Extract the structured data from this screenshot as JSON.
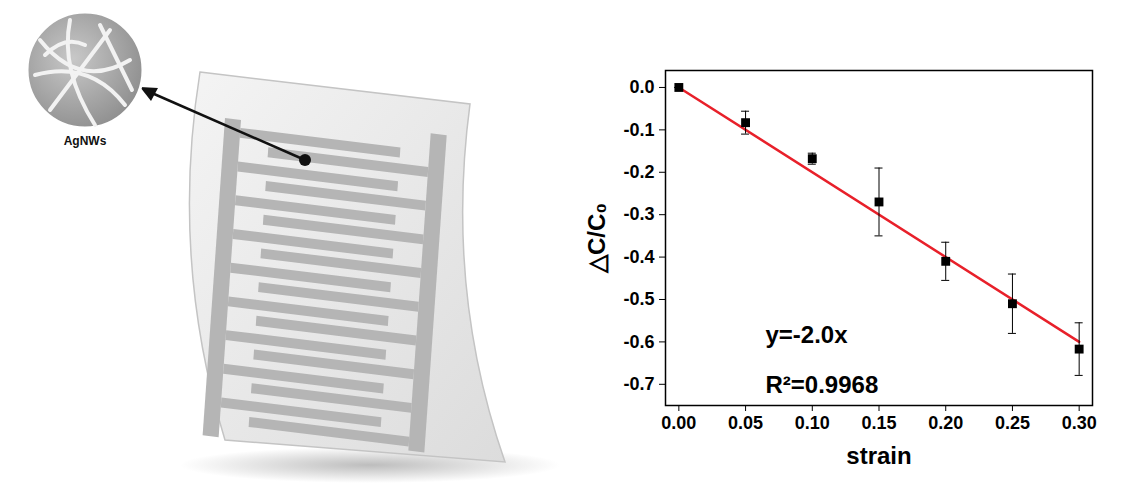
{
  "chart_data": {
    "type": "scatter",
    "x": [
      0,
      0.05,
      0.1,
      0.15,
      0.2,
      0.25,
      0.3
    ],
    "values": [
      0,
      -0.083,
      -0.168,
      -0.27,
      -0.41,
      -0.51,
      -0.617
    ],
    "errors": [
      0,
      0.027,
      0.013,
      0.08,
      0.045,
      0.07,
      0.062
    ],
    "color": "#000000",
    "marker": "square",
    "xlabel": "strain",
    "ylabel": "△C/C₀",
    "xlim": [
      -0.01,
      0.31
    ],
    "ylim": [
      -0.75,
      0.04
    ],
    "xticks": [
      {
        "value": 0,
        "label": "0.00"
      },
      0.05,
      {
        "value": 0.1,
        "label": "0.10"
      },
      0.15,
      {
        "value": 0.2,
        "label": "0.20"
      },
      0.25,
      {
        "value": 0.3,
        "label": "0.30"
      }
    ],
    "yticks": [
      {
        "value": 0,
        "label": "0.0"
      },
      -0.1,
      -0.2,
      -0.3,
      -0.4,
      -0.5,
      -0.6,
      -0.7
    ],
    "grid": false,
    "fit_line": {
      "x": [
        0,
        0.3
      ],
      "values": [
        0,
        -0.6
      ],
      "color": "#e8202a",
      "line_style": "solid"
    },
    "annotations": [
      "y=-2.0x",
      "R²=0.9968"
    ]
  },
  "illustration": {
    "inset_label": "AgNWs"
  }
}
